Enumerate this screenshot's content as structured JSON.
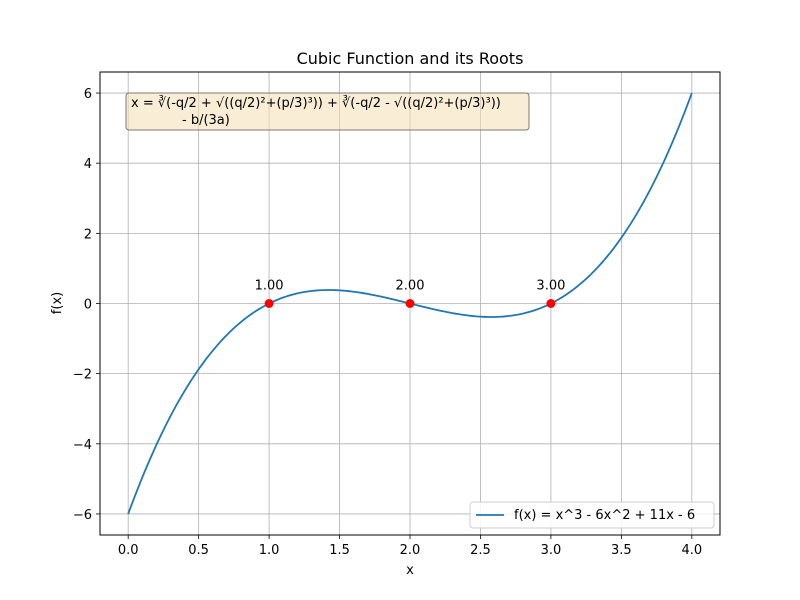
{
  "chart_data": {
    "type": "line",
    "title": "Cubic Function and its Roots",
    "xlabel": "x",
    "ylabel": "f(x)",
    "xlim": [
      -0.2,
      4.2
    ],
    "ylim": [
      -6.6,
      6.6
    ],
    "x_ticks": [
      0.0,
      0.5,
      1.0,
      1.5,
      2.0,
      2.5,
      3.0,
      3.5,
      4.0
    ],
    "x_tick_labels": [
      "0.0",
      "0.5",
      "1.0",
      "1.5",
      "2.0",
      "2.5",
      "3.0",
      "3.5",
      "4.0"
    ],
    "y_ticks": [
      -6,
      -4,
      -2,
      0,
      2,
      4,
      6
    ],
    "y_tick_labels": [
      "−6",
      "−4",
      "−2",
      "0",
      "2",
      "4",
      "6"
    ],
    "grid": true,
    "series": [
      {
        "name": "f(x) = x^3 - 6x^2 + 11x - 6",
        "color": "#1f77b4",
        "coefficients": [
          1,
          -6,
          11,
          -6
        ],
        "x_range": [
          0,
          4
        ]
      }
    ],
    "roots": [
      {
        "x": 1.0,
        "y": 0,
        "label": "1.00"
      },
      {
        "x": 2.0,
        "y": 0,
        "label": "2.00"
      },
      {
        "x": 3.0,
        "y": 0,
        "label": "3.00"
      }
    ],
    "root_color": "#ff0000",
    "annotation": {
      "lines": [
        "x = ∛(-q/2 + √((q/2)²+(p/3)³)) + ∛(-q/2 - √((q/2)²+(p/3)³))",
        "- b/(3a)"
      ],
      "box_color": "#f5deb3"
    },
    "legend_position": "lower-right"
  }
}
